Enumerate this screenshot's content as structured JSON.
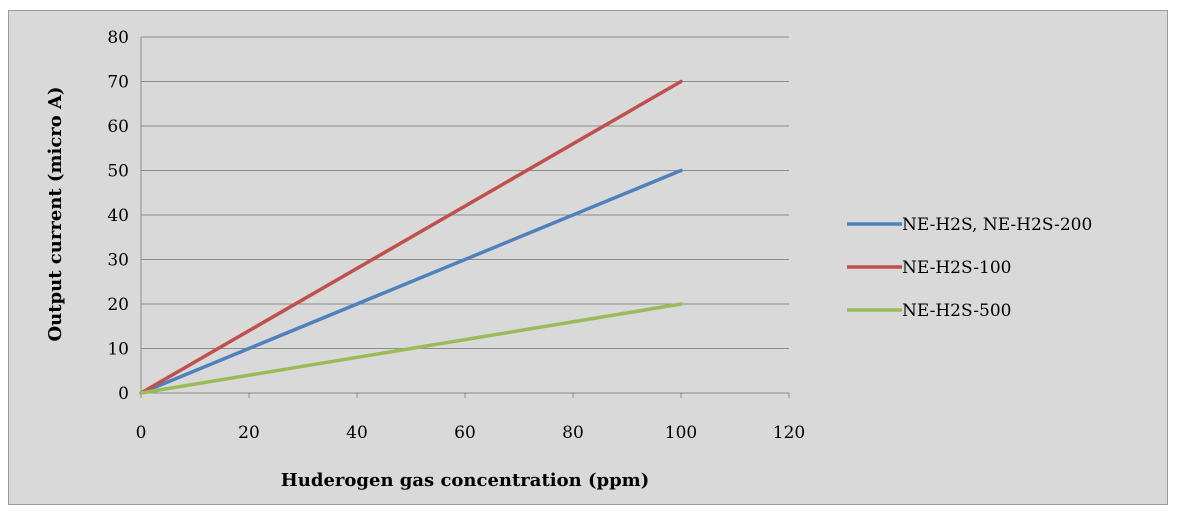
{
  "colors": {
    "background": "#d9d9d9",
    "gridline": "#8c8c8c",
    "series_blue": "#4f81bd",
    "series_red": "#c0504d",
    "series_green": "#9bbb59"
  },
  "chart_data": {
    "type": "line",
    "title": "",
    "xlabel": "Huderogen gas concentration (ppm)",
    "ylabel": "Output current (micro A)",
    "xlim": [
      0,
      120
    ],
    "ylim": [
      0,
      80
    ],
    "x_ticks": [
      "0",
      "20",
      "40",
      "60",
      "80",
      "100",
      "120"
    ],
    "y_ticks": [
      "0",
      "10",
      "20",
      "30",
      "40",
      "50",
      "60",
      "70",
      "80"
    ],
    "x_tick_values": [
      0,
      20,
      40,
      60,
      80,
      100,
      120
    ],
    "y_tick_values": [
      0,
      10,
      20,
      30,
      40,
      50,
      60,
      70,
      80
    ],
    "grid": "horizontal",
    "legend": "right",
    "series": [
      {
        "name": "NE-H2S, NE-H2S-200",
        "x": [
          0,
          100
        ],
        "y": [
          0,
          50
        ],
        "color": "#4f81bd"
      },
      {
        "name": "NE-H2S-100",
        "x": [
          0,
          100
        ],
        "y": [
          0,
          70
        ],
        "color": "#c0504d"
      },
      {
        "name": "NE-H2S-500",
        "x": [
          0,
          100
        ],
        "y": [
          0,
          20
        ],
        "color": "#9bbb59"
      }
    ]
  }
}
